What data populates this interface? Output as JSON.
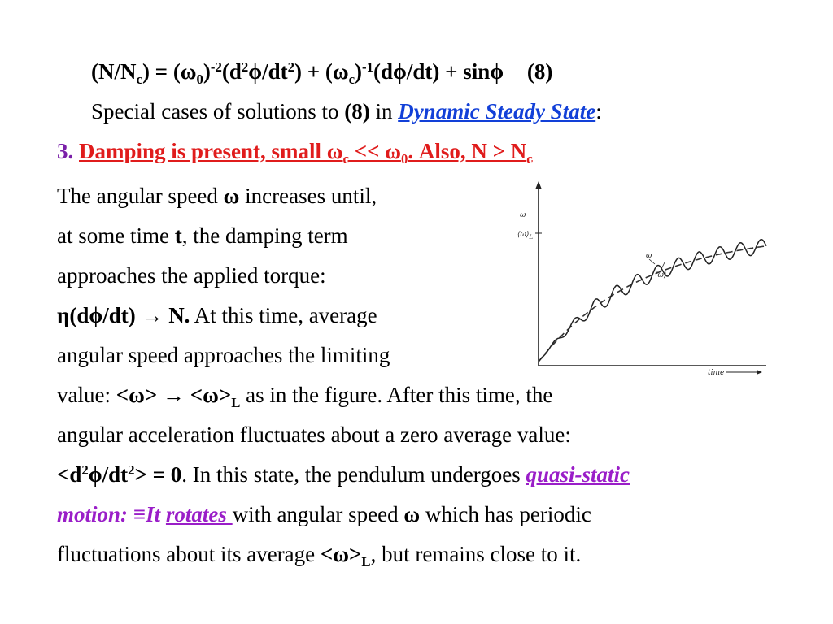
{
  "eq": {
    "lhs": "(N/N",
    "lhs_sub": "c",
    "p1": ") = (ω",
    "p1_sub": "0",
    "p2": ")",
    "p2_sup": "-2",
    "p3": "(d",
    "p3_sup": "2",
    "p4": "ϕ/dt",
    "p4_sup": "2",
    "p5": ") + (ω",
    "p5_sub": "c",
    "p6": ")",
    "p6_sup": "-1",
    "p7": "(dϕ/dt) + sinϕ",
    "num": "(8)"
  },
  "special": {
    "pre": "Special cases of solutions to ",
    "bold": "(8)",
    "mid": " in ",
    "link": "Dynamic Steady State",
    "post": ":"
  },
  "heading": {
    "number": "3.",
    "t1": "Damping is present, small ω",
    "t1_sub": "c",
    "t2": " << ω",
    "t2_sub": "0",
    "t3": ". Also, N  > N",
    "t3_sub": "c"
  },
  "body": {
    "l1_a": "The angular speed ",
    "l1_b": "ω",
    "l1_c": " increases until,",
    "l2_a": "at some time ",
    "l2_b": "t",
    "l2_c": ", the damping term",
    "l3": "approaches the applied torque:",
    "l4_a": "η(dϕ/dt) → N.",
    "l4_b": " At this time, average",
    "l5": "angular speed approaches the limiting",
    "l6_a": "value:  ",
    "l6_b": "<ω> → <ω>",
    "l6_b_sub": "L",
    "l6_c": " as in the figure. After this time, the",
    "l7": "angular acceleration fluctuates about a zero average value:",
    "l8_a": "<d",
    "l8_a_sup": "2",
    "l8_b": "ϕ/dt",
    "l8_b_sup": "2",
    "l8_c": "> = 0",
    "l8_d": ". In this state, the pendulum undergoes ",
    "l8_link": "quasi-static",
    "l9_a": "motion: ",
    "l9_b": "≡",
    "l9_c": "It",
    "l9_link": "rotates ",
    "l9_d": " with angular speed ",
    "l9_e": "ω",
    "l9_f": " which has periodic",
    "l10_a": "fluctuations about its average ",
    "l10_b": "<ω>",
    "l10_b_sub": "L",
    "l10_c": ", but remains close to  it."
  },
  "figure": {
    "y_axis_label": "ω",
    "limit_label": "⟨ω⟩",
    "limit_label_sub": "L",
    "curve_label": "ω",
    "avg_label": "⟨ω⟩",
    "x_axis_label": "time"
  }
}
